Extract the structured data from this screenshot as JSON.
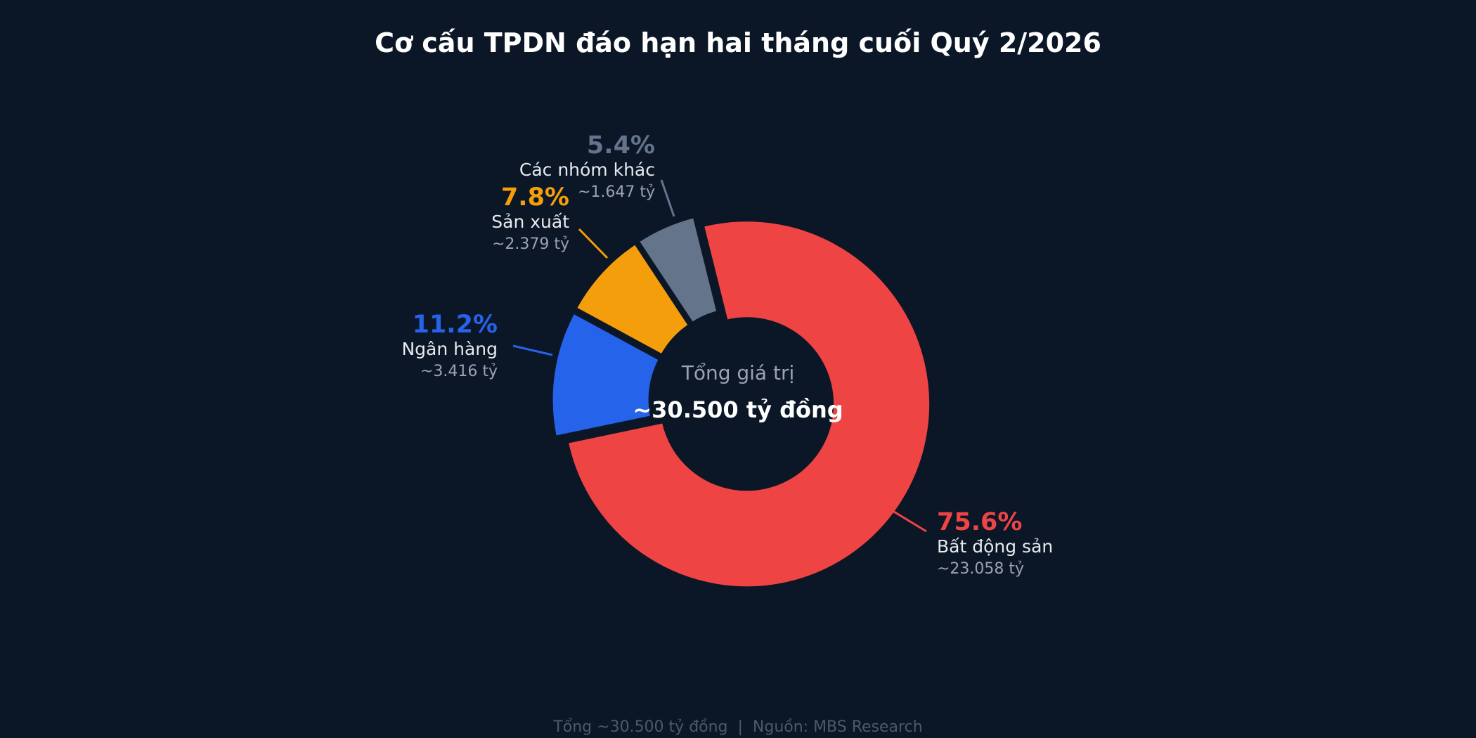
{
  "chart_data": {
    "type": "pie",
    "title": "Cơ cấu TPDN đáo hạn hai tháng cuối Quý 2/2026",
    "center_label": "Tổng giá trị",
    "center_value": "~30.500 tỷ đồng",
    "footer": "Tổng ~30.500 tỷ đồng  |  Nguồn: MBS Research",
    "series": [
      {
        "name": "Bất động sản",
        "value": 75.6,
        "percent_label": "75.6%",
        "amount_label": "~23.058 tỷ",
        "color": "#ef4444"
      },
      {
        "name": "Ngân hàng",
        "value": 11.2,
        "percent_label": "11.2%",
        "amount_label": "~3.416 tỷ",
        "color": "#2563eb"
      },
      {
        "name": "Sản xuất",
        "value": 7.8,
        "percent_label": "7.8%",
        "amount_label": "~2.379 tỷ",
        "color": "#f59e0b"
      },
      {
        "name": "Các nhóm khác",
        "value": 5.4,
        "percent_label": "5.4%",
        "amount_label": "~1.647 tỷ",
        "color": "#64748b"
      }
    ]
  }
}
